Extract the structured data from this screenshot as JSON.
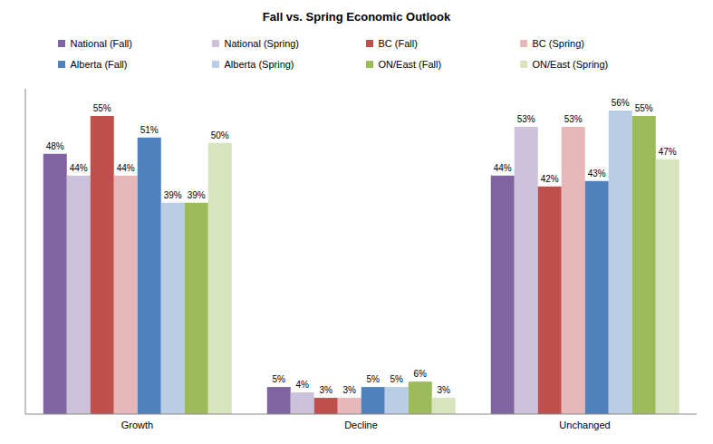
{
  "chart_data": {
    "type": "bar",
    "title": "Fall vs. Spring Economic Outlook",
    "categories": [
      "Growth",
      "Decline",
      "Unchanged"
    ],
    "series": [
      {
        "name": "National (Fall)",
        "color": "#8064A2",
        "values": [
          48,
          5,
          44
        ],
        "value_labels": [
          "48%",
          "5%",
          "44%"
        ]
      },
      {
        "name": "National (Spring)",
        "color": "#CCC1DA",
        "values": [
          44,
          4,
          53
        ],
        "value_labels": [
          "44%",
          "4%",
          "53%"
        ]
      },
      {
        "name": "BC (Fall)",
        "color": "#C0504D",
        "values": [
          55,
          3,
          42
        ],
        "value_labels": [
          "55%",
          "3%",
          "42%"
        ]
      },
      {
        "name": "BC (Spring)",
        "color": "#E6B9B8",
        "values": [
          44,
          3,
          53
        ],
        "value_labels": [
          "44%",
          "3%",
          "53%"
        ]
      },
      {
        "name": "Alberta (Fall)",
        "color": "#4F81BD",
        "values": [
          51,
          5,
          43
        ],
        "value_labels": [
          "51%",
          "5%",
          "43%"
        ]
      },
      {
        "name": "Alberta (Spring)",
        "color": "#B9CDE5",
        "values": [
          39,
          5,
          56
        ],
        "value_labels": [
          "39%",
          "5%",
          "56%"
        ]
      },
      {
        "name": "ON/East (Fall)",
        "color": "#9BBB59",
        "values": [
          39,
          6,
          55
        ],
        "value_labels": [
          "39%",
          "6%",
          "55%"
        ]
      },
      {
        "name": "ON/East (Spring)",
        "color": "#D7E4BD",
        "values": [
          50,
          3,
          47
        ],
        "value_labels": [
          "50%",
          "3%",
          "47%"
        ]
      }
    ],
    "ylim": [
      0,
      60
    ],
    "legend": "top",
    "data_labels": true,
    "tick_labels": "x",
    "grid": false
  }
}
